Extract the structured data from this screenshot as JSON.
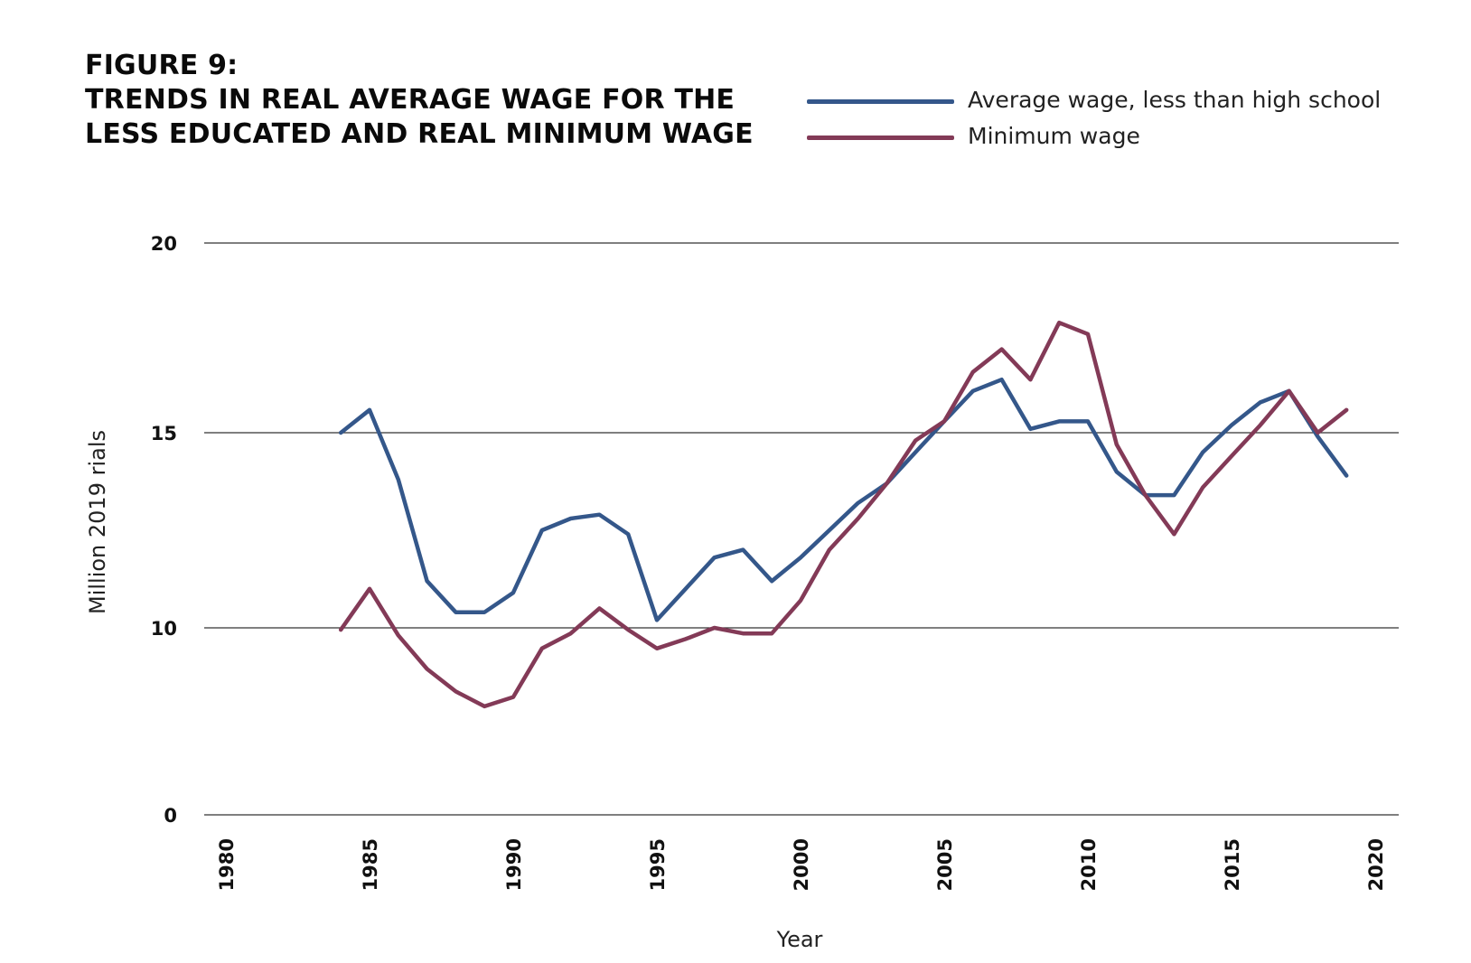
{
  "figure": {
    "label": "FIGURE 9:",
    "title_line1": "TRENDS IN REAL AVERAGE WAGE FOR THE",
    "title_line2": "LESS EDUCATED AND REAL MINIMUM WAGE"
  },
  "chart_data": {
    "type": "line",
    "title": "TRENDS IN REAL AVERAGE WAGE FOR THE LESS EDUCATED AND REAL MINIMUM WAGE",
    "xlabel": "Year",
    "ylabel": "Million 2019 rials",
    "xlim": [
      1980,
      2020
    ],
    "ylim": [
      0,
      20
    ],
    "x_ticks": [
      "1980",
      "1985",
      "1990",
      "1995",
      "2000",
      "2005",
      "2010",
      "2015",
      "2020"
    ],
    "y_ticks": [
      "0",
      "10",
      "15",
      "20"
    ],
    "grid": "horizontal",
    "legend_position": "top-right",
    "x": [
      1984,
      1985,
      1986,
      1987,
      1988,
      1989,
      1990,
      1991,
      1992,
      1993,
      1994,
      1995,
      1996,
      1997,
      1998,
      1999,
      2000,
      2001,
      2002,
      2003,
      2004,
      2005,
      2006,
      2007,
      2008,
      2009,
      2010,
      2011,
      2012,
      2013,
      2014,
      2015,
      2016,
      2017,
      2018,
      2019
    ],
    "series": [
      {
        "name": "Average wage, less than high school",
        "color": "#34578a",
        "values": [
          15.0,
          15.6,
          13.8,
          11.2,
          10.4,
          10.4,
          10.9,
          12.5,
          12.8,
          12.9,
          12.4,
          10.2,
          11.0,
          11.8,
          12.0,
          11.2,
          11.8,
          12.5,
          13.2,
          13.7,
          14.5,
          15.3,
          16.1,
          16.4,
          15.1,
          15.3,
          15.3,
          14.0,
          13.4,
          13.4,
          14.5,
          15.2,
          15.8,
          16.1,
          14.9,
          13.9
        ]
      },
      {
        "name": "Minimum wage",
        "color": "#833a57",
        "values": [
          9.9,
          11.0,
          9.6,
          7.8,
          6.6,
          5.8,
          6.3,
          8.9,
          9.7,
          10.5,
          9.9,
          8.9,
          9.4,
          10.0,
          9.7,
          9.7,
          10.7,
          12.0,
          12.8,
          13.7,
          14.8,
          15.3,
          16.6,
          17.2,
          16.4,
          17.9,
          17.6,
          14.7,
          13.4,
          12.4,
          13.6,
          14.4,
          15.2,
          16.1,
          15.0,
          15.6
        ]
      }
    ]
  }
}
